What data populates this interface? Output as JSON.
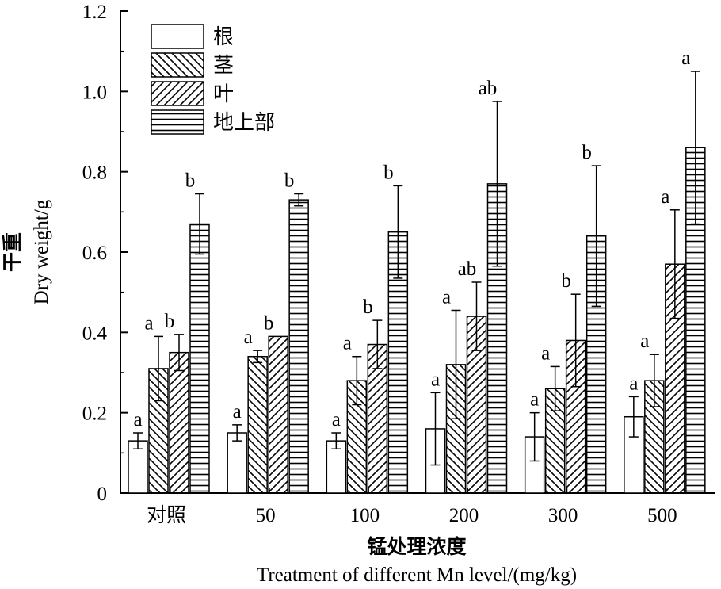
{
  "chart_data": {
    "type": "bar",
    "xlabel_cn": "锰处理浓度",
    "xlabel_en": "Treatment of different Mn level/(mg/kg)",
    "ylabel_cn": "干重",
    "ylabel_en": "Dry weight/g",
    "ylim": [
      0,
      1.2
    ],
    "yticks": [
      "0",
      "0.2",
      "0.4",
      "0.6",
      "0.8",
      "1.0",
      "1.2"
    ],
    "ytick_values": [
      0,
      0.2,
      0.4,
      0.6,
      0.8,
      1.0,
      1.2
    ],
    "grid": false,
    "legend_position": "top-left",
    "categories": [
      "对照",
      "50",
      "100",
      "200",
      "300",
      "500"
    ],
    "series": [
      {
        "name": "根",
        "pattern": "empty",
        "values": [
          0.13,
          0.15,
          0.13,
          0.16,
          0.14,
          0.19
        ],
        "errors": [
          0.02,
          0.02,
          0.02,
          0.09,
          0.06,
          0.05
        ],
        "letters": [
          "a",
          "a",
          "a",
          "a",
          "a",
          "a"
        ]
      },
      {
        "name": "茎",
        "pattern": "backslash",
        "values": [
          0.31,
          0.34,
          0.28,
          0.32,
          0.26,
          0.28
        ],
        "errors": [
          0.08,
          0.015,
          0.06,
          0.135,
          0.055,
          0.065
        ],
        "letters": [
          "a",
          "a",
          "a",
          "a",
          "a",
          "a"
        ]
      },
      {
        "name": "叶",
        "pattern": "slash",
        "values": [
          0.35,
          0.39,
          0.37,
          0.44,
          0.38,
          0.57
        ],
        "errors": [
          0.045,
          0.0,
          0.06,
          0.085,
          0.115,
          0.135
        ],
        "letters": [
          "b",
          "b",
          "b",
          "ab",
          "b",
          "a"
        ]
      },
      {
        "name": "地上部",
        "pattern": "horizontal",
        "values": [
          0.67,
          0.73,
          0.65,
          0.77,
          0.64,
          0.86
        ],
        "errors": [
          0.075,
          0.015,
          0.115,
          0.205,
          0.175,
          0.19
        ],
        "letters": [
          "b",
          "b",
          "b",
          "ab",
          "b",
          "a"
        ]
      }
    ]
  }
}
